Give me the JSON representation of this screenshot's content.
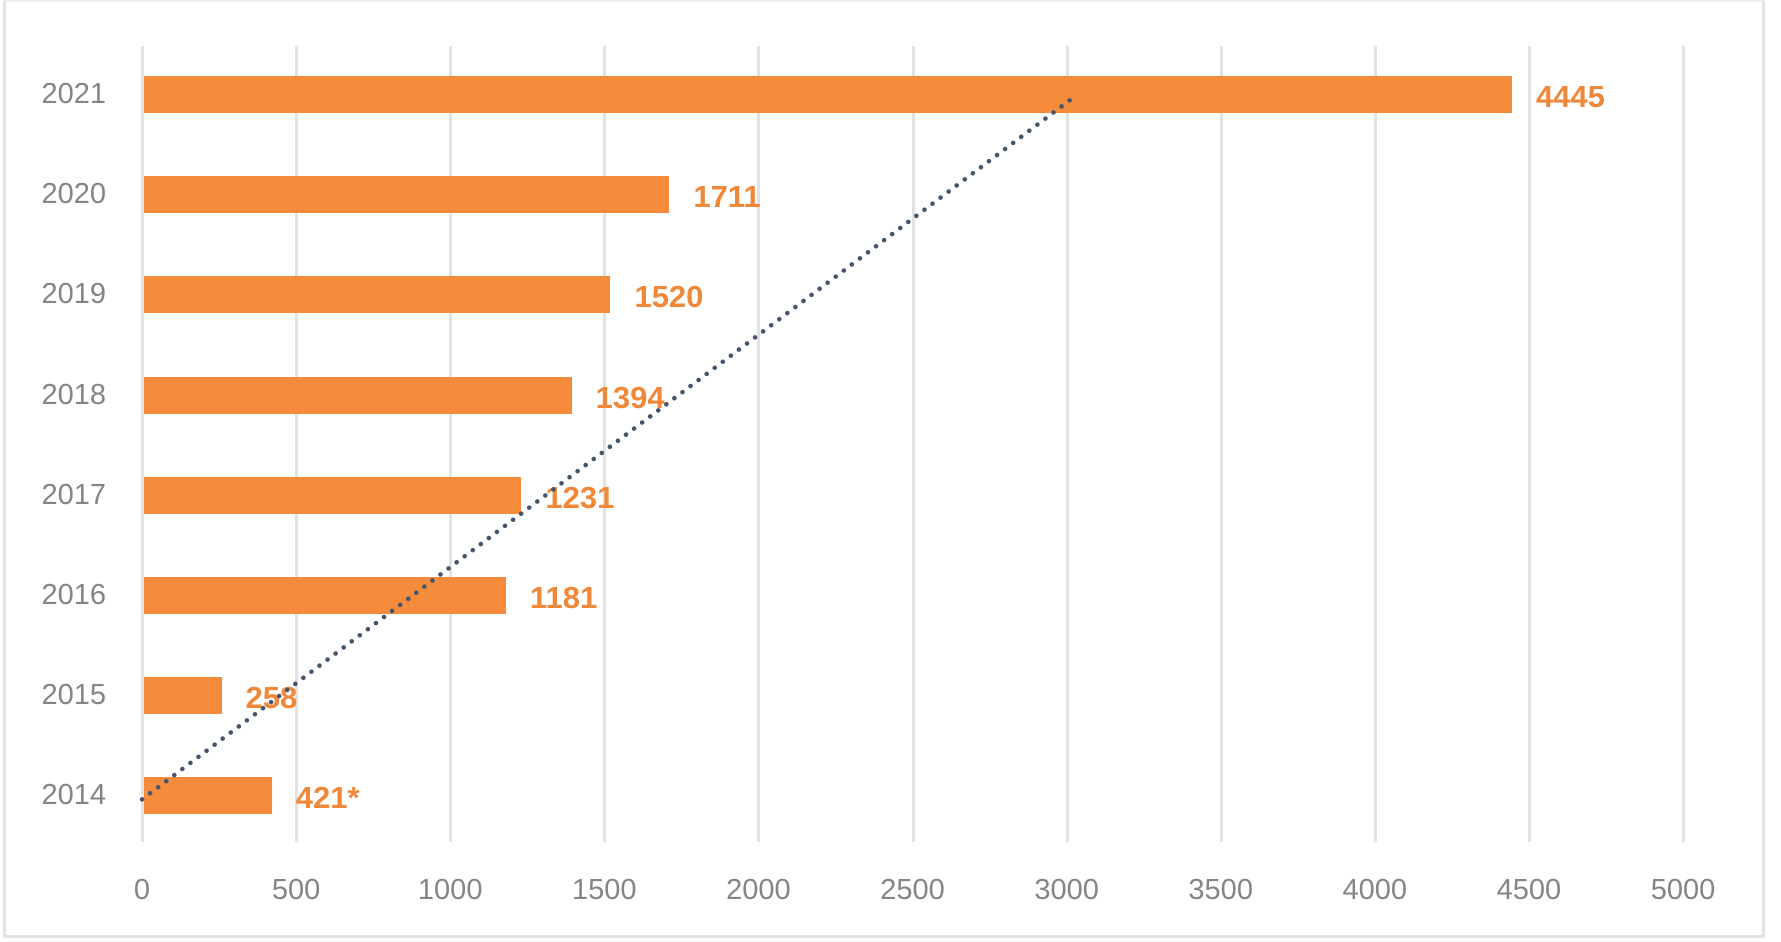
{
  "chart_data": {
    "type": "bar",
    "orientation": "horizontal",
    "title": "",
    "xlabel": "",
    "ylabel": "",
    "categories": [
      "2021",
      "2020",
      "2019",
      "2018",
      "2017",
      "2016",
      "2015",
      "2014"
    ],
    "values": [
      4445,
      1711,
      1520,
      1394,
      1231,
      1181,
      258,
      421
    ],
    "data_labels": [
      "4445",
      "1711",
      "1520",
      "1394",
      "1231",
      "1181",
      "258",
      "421*"
    ],
    "xlim": [
      0,
      5000
    ],
    "x_ticks": [
      "0",
      "500",
      "1000",
      "1500",
      "2000",
      "2500",
      "3000",
      "3500",
      "4000",
      "4500",
      "5000"
    ],
    "grid": "vertical",
    "legend": "none",
    "trendline": {
      "type": "linear",
      "style": "dotted",
      "from_category": "2014",
      "to_category": "2021",
      "x_start": 0,
      "x_end": 3020
    },
    "colors": {
      "bar": "#F48C3C",
      "label": "#F0883A",
      "trendline": "#44546A",
      "axis_text": "#858585",
      "grid": "#E2E2E2"
    }
  }
}
